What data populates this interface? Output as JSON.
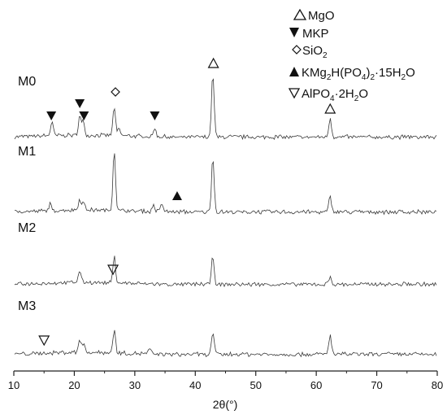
{
  "chart_data": {
    "type": "line",
    "title": "",
    "xlabel": "2θ(°)",
    "ylabel": "",
    "xlim": [
      10,
      80
    ],
    "x_ticks": [
      "10",
      "20",
      "30",
      "40",
      "50",
      "60",
      "70",
      "80"
    ],
    "grid": false,
    "legend_placement": "top-right",
    "legend": [
      {
        "marker": "open-triangle-up",
        "label": "MgO"
      },
      {
        "marker": "filled-triangle-down",
        "label": "MKP"
      },
      {
        "marker": "open-diamond",
        "label": "SiO2"
      },
      {
        "marker": "filled-triangle-up",
        "label": "KMg2H(PO4)2·15H2O"
      },
      {
        "marker": "open-triangle-down",
        "label": "AlPO4·2H2O"
      }
    ],
    "series": [
      {
        "name": "M0",
        "peaks": [
          {
            "x": 16.3,
            "h": 0.22
          },
          {
            "x": 20.9,
            "h": 0.3
          },
          {
            "x": 21.5,
            "h": 0.22
          },
          {
            "x": 26.6,
            "h": 0.45
          },
          {
            "x": 27.4,
            "h": 0.1
          },
          {
            "x": 33.3,
            "h": 0.14
          },
          {
            "x": 42.9,
            "h": 1.0
          },
          {
            "x": 62.3,
            "h": 0.3
          }
        ]
      },
      {
        "name": "M1",
        "peaks": [
          {
            "x": 16.0,
            "h": 0.1
          },
          {
            "x": 20.9,
            "h": 0.18
          },
          {
            "x": 21.5,
            "h": 0.12
          },
          {
            "x": 26.6,
            "h": 0.98
          },
          {
            "x": 33.1,
            "h": 0.1
          },
          {
            "x": 34.5,
            "h": 0.13
          },
          {
            "x": 42.9,
            "h": 0.9
          },
          {
            "x": 62.3,
            "h": 0.25
          }
        ]
      },
      {
        "name": "M2",
        "peaks": [
          {
            "x": 20.9,
            "h": 0.28
          },
          {
            "x": 26.6,
            "h": 0.62
          },
          {
            "x": 42.9,
            "h": 0.68
          },
          {
            "x": 62.3,
            "h": 0.18
          }
        ]
      },
      {
        "name": "M3",
        "peaks": [
          {
            "x": 20.9,
            "h": 0.28
          },
          {
            "x": 21.5,
            "h": 0.18
          },
          {
            "x": 26.6,
            "h": 0.48
          },
          {
            "x": 32.5,
            "h": 0.1
          },
          {
            "x": 42.9,
            "h": 0.48
          },
          {
            "x": 62.3,
            "h": 0.42
          }
        ]
      }
    ],
    "annotations": [
      {
        "marker": "filled-triangle-down",
        "series": "M0",
        "x": [
          16.2,
          20.9,
          21.6,
          33.3
        ]
      },
      {
        "marker": "open-diamond",
        "series": "M0",
        "x": [
          26.8
        ]
      },
      {
        "marker": "open-triangle-up",
        "series": "M0",
        "x": [
          43.0,
          62.3
        ]
      },
      {
        "marker": "filled-triangle-up",
        "series": "M1",
        "x": [
          37.0
        ]
      },
      {
        "marker": "open-triangle-down",
        "series": "M2",
        "x": [
          26.4
        ]
      },
      {
        "marker": "open-triangle-down",
        "series": "M3",
        "x": [
          15.0
        ]
      }
    ]
  }
}
